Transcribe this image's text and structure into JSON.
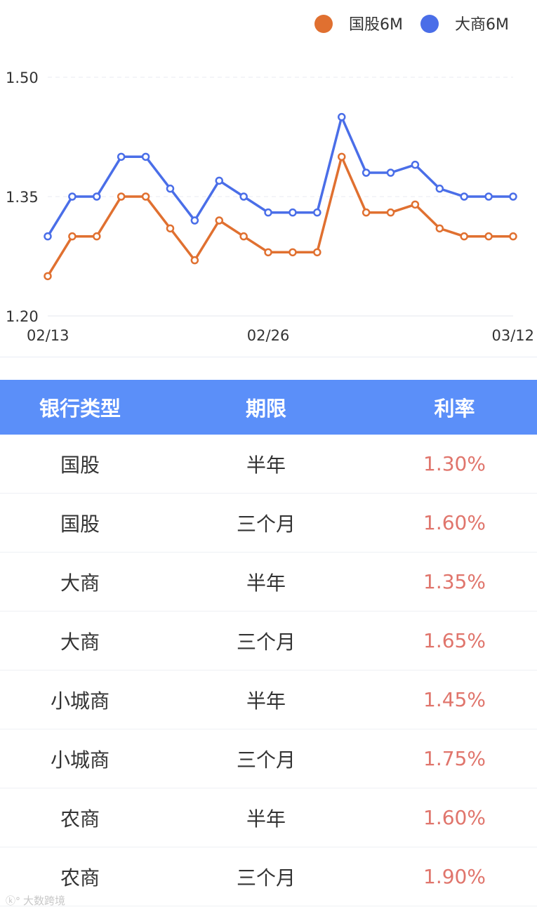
{
  "chart_data": {
    "type": "line",
    "legend_position": "top-right",
    "grid": "horizontal-dashed",
    "ylim": [
      1.2,
      1.5
    ],
    "y_ticks": [
      "1.20",
      "1.35",
      "1.50"
    ],
    "y_tick_values": [
      1.2,
      1.35,
      1.5
    ],
    "x_tick_labels": [
      "02/13",
      "02/26",
      "03/12"
    ],
    "x_tick_index": [
      0,
      9,
      19
    ],
    "series": [
      {
        "name": "国股6M",
        "color": "#e07030",
        "values": [
          1.25,
          1.3,
          1.3,
          1.35,
          1.35,
          1.31,
          1.27,
          1.32,
          1.3,
          1.28,
          1.28,
          1.28,
          1.4,
          1.33,
          1.33,
          1.34,
          1.31,
          1.3,
          1.3,
          1.3
        ]
      },
      {
        "name": "大商6M",
        "color": "#4a6ee8",
        "values": [
          1.3,
          1.35,
          1.35,
          1.4,
          1.4,
          1.36,
          1.32,
          1.37,
          1.35,
          1.33,
          1.33,
          1.33,
          1.45,
          1.38,
          1.38,
          1.39,
          1.36,
          1.35,
          1.35,
          1.35
        ]
      }
    ]
  },
  "table": {
    "headers": [
      "银行类型",
      "期限",
      "利率"
    ],
    "rows": [
      [
        "国股",
        "半年",
        "1.30%"
      ],
      [
        "国股",
        "三个月",
        "1.60%"
      ],
      [
        "大商",
        "半年",
        "1.35%"
      ],
      [
        "大商",
        "三个月",
        "1.65%"
      ],
      [
        "小城商",
        "半年",
        "1.45%"
      ],
      [
        "小城商",
        "三个月",
        "1.75%"
      ],
      [
        "农商",
        "半年",
        "1.60%"
      ],
      [
        "农商",
        "三个月",
        "1.90%"
      ]
    ]
  },
  "watermark": {
    "text": "大数跨境"
  }
}
